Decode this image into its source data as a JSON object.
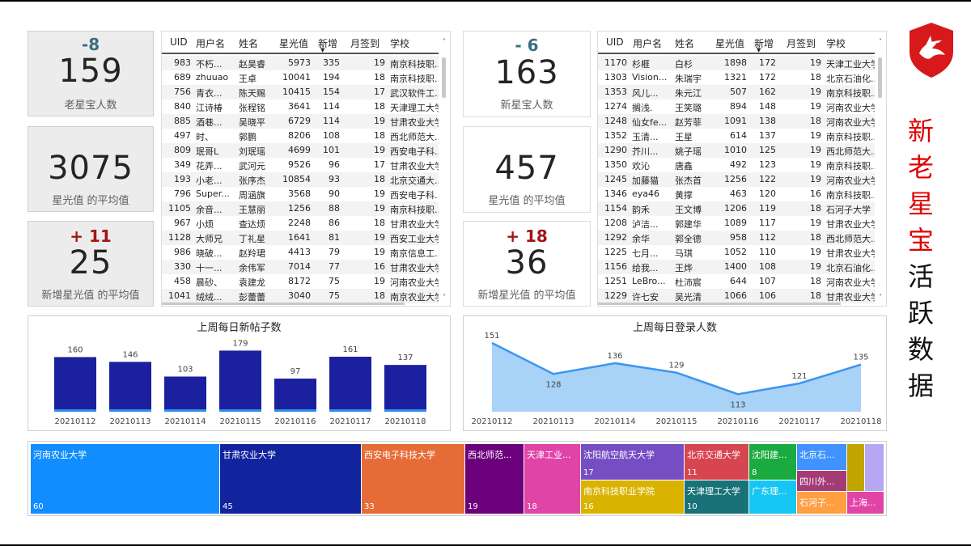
{
  "colors": {
    "accent_red": "#e00000",
    "bar": "#1a209e",
    "line": "#3a96f0",
    "area": "#a9d2f7",
    "pos_delta": "#a31515",
    "neg_delta": "#3b6e7f"
  },
  "kpis": {
    "old_count": {
      "delta": "-8",
      "value": "159",
      "label": "老星宝人数"
    },
    "old_avg_star": {
      "value": "3075",
      "label": "星光值 的平均值"
    },
    "old_avg_new": {
      "delta": "+ 11",
      "value": "25",
      "label": "新增星光值 的平均值"
    },
    "new_count": {
      "delta": "- 6",
      "value": "163",
      "label": "新星宝人数"
    },
    "new_avg_star": {
      "value": "457",
      "label": "星光值 的平均值"
    },
    "new_avg_new": {
      "delta": "+ 18",
      "value": "36",
      "label": "新增星光值 的平均值"
    }
  },
  "table_headers": [
    "UID",
    "用户名",
    "姓名",
    "星光值",
    "新增",
    "月签到",
    "学校"
  ],
  "old_table": [
    [
      "983",
      "不朽...",
      "赵昊睿",
      "5973",
      "335",
      "19",
      "南京科技职..."
    ],
    [
      "689",
      "zhuuao",
      "王卓",
      "10041",
      "194",
      "18",
      "南京科技职..."
    ],
    [
      "756",
      "青衣...",
      "陈天赐",
      "10415",
      "154",
      "17",
      "武汉软件工..."
    ],
    [
      "840",
      "江诗椿",
      "张程铭",
      "3641",
      "114",
      "18",
      "天津理工大学"
    ],
    [
      "885",
      "酒巷...",
      "吴晓平",
      "6729",
      "114",
      "19",
      "甘肃农业大学"
    ],
    [
      "497",
      "时、",
      "郭鹏",
      "8206",
      "108",
      "18",
      "西北师范大..."
    ],
    [
      "809",
      "珉哥L",
      "刘珉瑶",
      "4699",
      "101",
      "19",
      "西安电子科..."
    ],
    [
      "349",
      "花弄...",
      "武河元",
      "9526",
      "96",
      "17",
      "甘肃农业大学"
    ],
    [
      "193",
      "小老...",
      "张序杰",
      "10854",
      "93",
      "18",
      "北京交通大..."
    ],
    [
      "796",
      "Super...",
      "周涵旗",
      "3568",
      "90",
      "19",
      "西安电子科..."
    ],
    [
      "1105",
      "余音...",
      "王慧丽",
      "1256",
      "88",
      "19",
      "南京科技职..."
    ],
    [
      "967",
      "小烦",
      "查达烦",
      "2248",
      "86",
      "18",
      "甘肃农业大学"
    ],
    [
      "1128",
      "大师兄",
      "丁礼星",
      "1641",
      "81",
      "19",
      "西安工业大学"
    ],
    [
      "986",
      "晓破...",
      "赵羚珺",
      "4413",
      "79",
      "19",
      "南京信息工..."
    ],
    [
      "330",
      "十一...",
      "余伟军",
      "7014",
      "77",
      "16",
      "甘肃农业大学"
    ],
    [
      "458",
      "晨砂、",
      "袁建龙",
      "8172",
      "75",
      "19",
      "河南农业大学"
    ],
    [
      "1041",
      "绒绒...",
      "彭蕾蕾",
      "3040",
      "75",
      "18",
      "南京农业大学"
    ]
  ],
  "new_table": [
    [
      "1170",
      "杉榧",
      "白杉",
      "1898",
      "172",
      "19",
      "天津工业大学"
    ],
    [
      "1303",
      "Vision...",
      "朱瑞宇",
      "1321",
      "172",
      "18",
      "北京石油化..."
    ],
    [
      "1353",
      "风儿...",
      "朱元江",
      "507",
      "162",
      "19",
      "南京科技职..."
    ],
    [
      "1274",
      "搁浅.",
      "王笑璐",
      "894",
      "148",
      "19",
      "河南农业大学"
    ],
    [
      "1248",
      "仙女fe...",
      "赵芳菲",
      "1091",
      "138",
      "18",
      "河南农业大学"
    ],
    [
      "1352",
      "玉清...",
      "王星",
      "614",
      "137",
      "19",
      "南京科技职..."
    ],
    [
      "1290",
      "芥川...",
      "姚子瑶",
      "1010",
      "125",
      "19",
      "西北师范大..."
    ],
    [
      "1350",
      "欢沁",
      "唐鑫",
      "492",
      "123",
      "19",
      "南京科技职..."
    ],
    [
      "1245",
      "加藤猫",
      "张杰首",
      "1256",
      "122",
      "19",
      "河南农业大学"
    ],
    [
      "1346",
      "eya46",
      "黄撑",
      "463",
      "120",
      "16",
      "南京科技职..."
    ],
    [
      "1154",
      "韵禾",
      "王文博",
      "1206",
      "119",
      "18",
      "石河子大学"
    ],
    [
      "1208",
      "泸洁...",
      "郭建华",
      "1089",
      "117",
      "19",
      "甘肃农业大学"
    ],
    [
      "1292",
      "余华",
      "郭全德",
      "958",
      "112",
      "18",
      "西北师范大..."
    ],
    [
      "1225",
      "七月...",
      "马琪",
      "1052",
      "110",
      "19",
      "甘肃农业大学"
    ],
    [
      "1156",
      "给我...",
      "王烨",
      "1400",
      "108",
      "19",
      "北京石油化..."
    ],
    [
      "1251",
      "LeBro...",
      "杜沛宸",
      "644",
      "107",
      "18",
      "河南农业大学"
    ],
    [
      "1229",
      "许七安",
      "吴光清",
      "1066",
      "106",
      "18",
      "甘肃农业大学"
    ]
  ],
  "chart_data": [
    {
      "type": "bar",
      "title": "上周每日新帖子数",
      "categories": [
        "20210112",
        "20210113",
        "20210114",
        "20210115",
        "20210116",
        "20210117",
        "20210118"
      ],
      "values": [
        160,
        146,
        103,
        179,
        97,
        161,
        137
      ]
    },
    {
      "type": "area",
      "title": "上周每日登录人数",
      "categories": [
        "20210112",
        "20210113",
        "20210114",
        "20210115",
        "20210116",
        "20210117",
        "20210118"
      ],
      "values": [
        151,
        128,
        136,
        129,
        113,
        121,
        135
      ]
    },
    {
      "type": "treemap",
      "items": [
        {
          "name": "河南农业大学",
          "value": 60,
          "color": "#118dff"
        },
        {
          "name": "甘肃农业大学",
          "value": 45,
          "color": "#12239e"
        },
        {
          "name": "西安电子科技大学",
          "value": 33,
          "color": "#e66c37"
        },
        {
          "name": "西北师范...",
          "value": 19,
          "color": "#6b007b"
        },
        {
          "name": "天津工业...",
          "value": 18,
          "color": "#e044a7"
        },
        {
          "name": "沈阳航空航天大学",
          "value": 17,
          "color": "#744ec2"
        },
        {
          "name": "南京科技职业学院",
          "value": 16,
          "color": "#d9b300"
        },
        {
          "name": "北京交通大学",
          "value": 11,
          "color": "#d64550"
        },
        {
          "name": "天津理工大学",
          "value": 10,
          "color": "#197278"
        },
        {
          "name": "沈阳建...",
          "value": 8,
          "color": "#1aab40"
        },
        {
          "name": "广东理...",
          "value": null,
          "color": "#15c6f4"
        },
        {
          "name": "北京石...",
          "value": null,
          "color": "#4092ff"
        },
        {
          "name": "四川外...",
          "value": null,
          "color": "#a43b76"
        },
        {
          "name": "石河子...",
          "value": null,
          "color": "#ff9f41"
        },
        {
          "name": "上海...",
          "value": null,
          "color": "#e044a7"
        },
        {
          "name": "",
          "value": null,
          "color": "#c0a400"
        },
        {
          "name": "",
          "value": null,
          "color": "#b7a7f2"
        }
      ]
    }
  ],
  "side_title": [
    "新",
    "老",
    "星",
    "宝",
    "活",
    "跃",
    "数",
    "据"
  ]
}
